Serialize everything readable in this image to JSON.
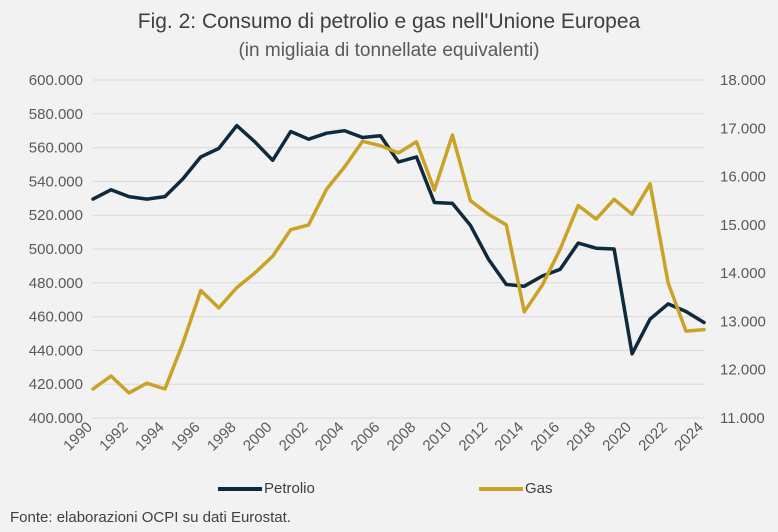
{
  "title": "Fig. 2: Consumo di petrolio e gas nell'Unione Europea",
  "subtitle": "(in migliaia di tonnellate equivalenti)",
  "source": "Fonte: elaborazioni OCPI su dati Eurostat.",
  "chart_data": {
    "type": "line",
    "x": [
      1990,
      1991,
      1992,
      1993,
      1994,
      1995,
      1996,
      1997,
      1998,
      1999,
      2000,
      2001,
      2002,
      2003,
      2004,
      2005,
      2006,
      2007,
      2008,
      2009,
      2010,
      2011,
      2012,
      2013,
      2014,
      2015,
      2016,
      2017,
      2018,
      2019,
      2020,
      2021,
      2022,
      2023,
      2024
    ],
    "x_tick_labels": [
      "1990",
      "1992",
      "1994",
      "1996",
      "1998",
      "2000",
      "2002",
      "2004",
      "2006",
      "2008",
      "2010",
      "2012",
      "2014",
      "2016",
      "2018",
      "2020",
      "2022",
      "2024"
    ],
    "y_left": {
      "ylim": [
        400000,
        600000
      ],
      "tick_labels": [
        "400.000",
        "420.000",
        "440.000",
        "460.000",
        "480.000",
        "500.000",
        "520.000",
        "540.000",
        "560.000",
        "580.000",
        "600.000"
      ]
    },
    "y_right": {
      "ylim": [
        11000,
        18000
      ],
      "tick_labels": [
        "11.000",
        "12.000",
        "13.000",
        "14.000",
        "15.000",
        "16.000",
        "17.000",
        "18.000"
      ]
    },
    "grid": "horizontal",
    "legend_position": "bottom",
    "series": [
      {
        "name": "Petrolio",
        "axis": "left",
        "color": "#0e2a3c",
        "values": [
          529500,
          535000,
          531000,
          529500,
          531000,
          541500,
          554500,
          559500,
          573000,
          563500,
          552500,
          569500,
          565000,
          568500,
          570000,
          566000,
          567000,
          551500,
          554500,
          527500,
          527000,
          514000,
          494000,
          479000,
          478000,
          484000,
          488000,
          503500,
          500500,
          500000,
          438000,
          458500,
          467500,
          463000,
          456500
        ]
      },
      {
        "name": "Gas",
        "axis": "left_scaled_right",
        "color": "#c9a227",
        "values": [
          11600,
          11870,
          11520,
          11720,
          11600,
          12550,
          13640,
          13280,
          13700,
          14000,
          14350,
          14900,
          15000,
          15740,
          16200,
          16730,
          16640,
          16490,
          16720,
          15720,
          16860,
          15500,
          15220,
          15000,
          13200,
          13750,
          14500,
          15400,
          15120,
          15530,
          15220,
          15850,
          13800,
          12800,
          12830
        ]
      }
    ]
  }
}
